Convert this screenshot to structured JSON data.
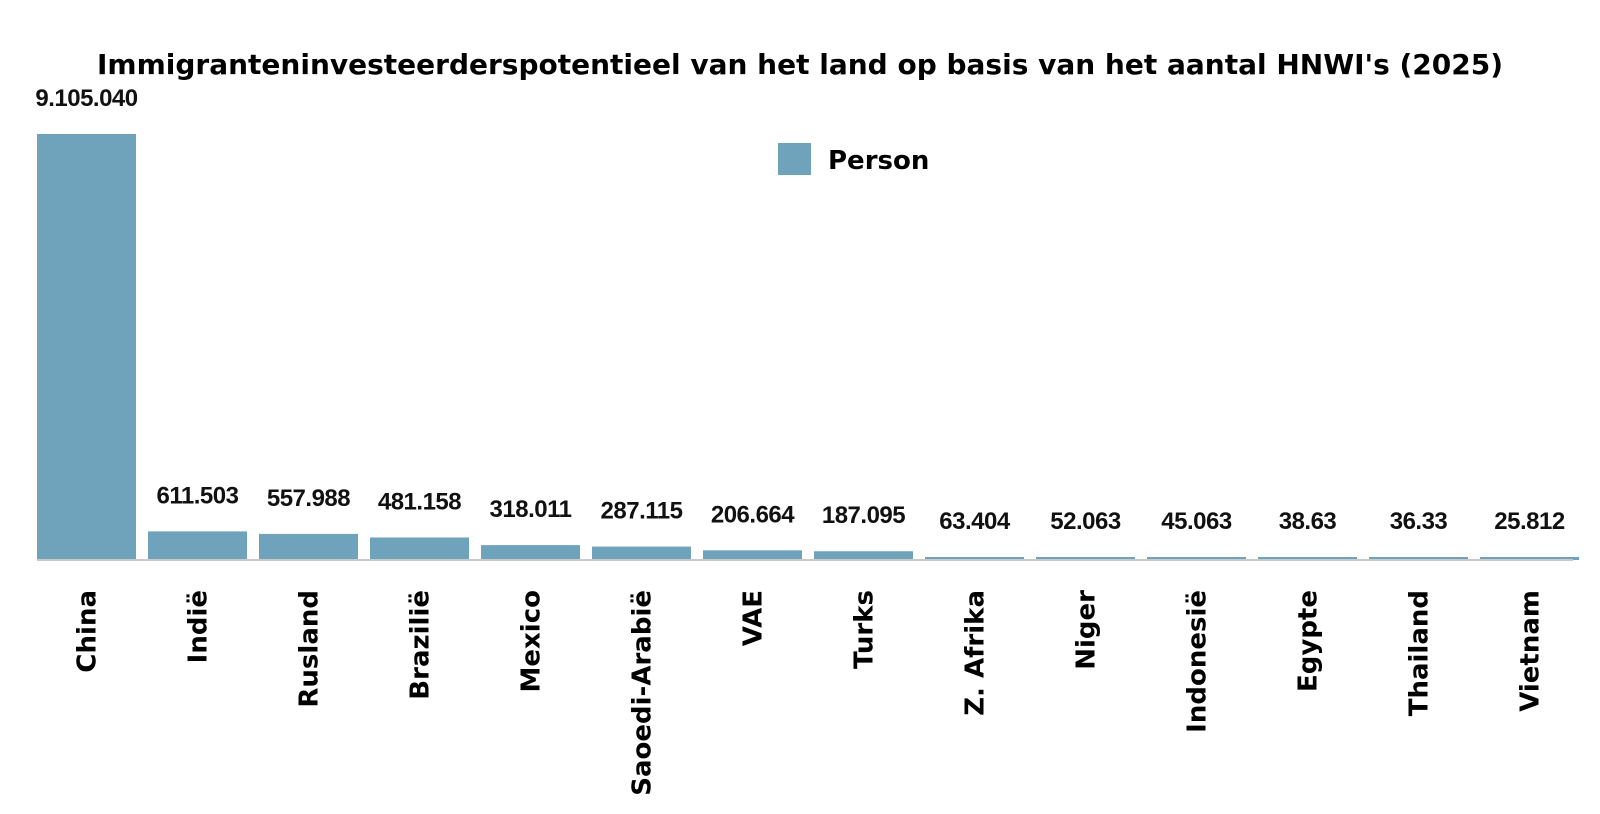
{
  "chart_data": {
    "type": "bar",
    "title": "Immigranteninvesteerderspotentieel van het land op basis van het aantal HNWI's (2025)",
    "series": [
      {
        "name": "Person",
        "color": "#6fa3bb",
        "values": [
          9105040,
          611503,
          557988,
          481158,
          318011,
          287115,
          206664,
          187095,
          63404,
          52063,
          45063,
          38630,
          36330,
          25812
        ]
      }
    ],
    "categories": [
      "China",
      "Indië",
      "Rusland",
      "Brazilië",
      "Mexico",
      "Saoedi-Arabië",
      "VAE",
      "Turks",
      "Z. Afrika",
      "Niger",
      "Indonesië",
      "Egypte",
      "Thailand",
      "Vietnam"
    ],
    "value_labels": [
      "9.105.040",
      "611.503",
      "557.988",
      "481.158",
      "318.011",
      "287.115",
      "206.664",
      "187.095",
      "63.404",
      "52.063",
      "45.063",
      "38.63",
      "36.33",
      "25.812"
    ],
    "legend_position": "top-center",
    "grid": false,
    "ylim": [
      0,
      9105040
    ],
    "xlabel": "",
    "ylabel": ""
  }
}
